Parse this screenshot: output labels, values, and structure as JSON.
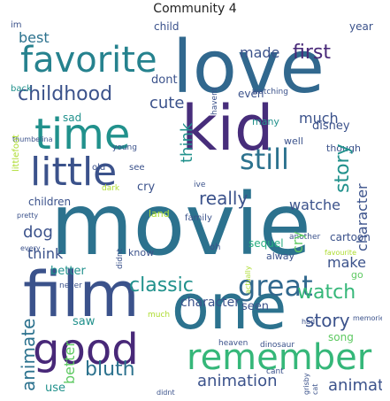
{
  "title": "Community 4",
  "palette": {
    "dark_purple": "#440154",
    "indigo": "#3b528b",
    "blue": "#2c728e",
    "teal": "#21918c",
    "green": "#28ae80",
    "light_green": "#5ec962",
    "yellow_green": "#addc30",
    "navy": "#31688e"
  },
  "words": [
    {
      "text": "movie",
      "color": "#2c728e"
    },
    {
      "text": "love",
      "color": "#31688e"
    },
    {
      "text": "kid",
      "color": "#472d7b"
    },
    {
      "text": "film",
      "color": "#3b528b"
    },
    {
      "text": "one",
      "color": "#2c728e"
    },
    {
      "text": "time",
      "color": "#21918c"
    },
    {
      "text": "little",
      "color": "#3b528b"
    },
    {
      "text": "favorite",
      "color": "#26828e"
    },
    {
      "text": "good",
      "color": "#482878"
    },
    {
      "text": "remember",
      "color": "#35b779"
    },
    {
      "text": "great",
      "color": "#31688e"
    },
    {
      "text": "still",
      "color": "#2c728e"
    },
    {
      "text": "childhood",
      "color": "#3b528b"
    },
    {
      "text": "classic",
      "color": "#21918c"
    },
    {
      "text": "watch",
      "color": "#35b779"
    },
    {
      "text": "bluth",
      "color": "#2c728e"
    },
    {
      "text": "animation",
      "color": "#3b528b"
    },
    {
      "text": "first",
      "color": "#482878"
    },
    {
      "text": "really",
      "color": "#21918c"
    },
    {
      "text": "story",
      "color": "#3b528b"
    },
    {
      "text": "animate",
      "color": "#2c728e"
    },
    {
      "text": "cute",
      "color": "#3b528b"
    },
    {
      "text": "made",
      "color": "#3b528b"
    },
    {
      "text": "best",
      "color": "#3b528b"
    },
    {
      "text": "much",
      "color": "#3b528b"
    },
    {
      "text": "watche",
      "color": "#2c728e"
    },
    {
      "text": "dog",
      "color": "#3b528b"
    },
    {
      "text": "think",
      "color": "#21918c"
    },
    {
      "text": "make",
      "color": "#3b528b"
    },
    {
      "text": "character",
      "color": "#3b528b"
    },
    {
      "text": "use",
      "color": "#3b528b"
    },
    {
      "text": "dont",
      "color": "#3b528b"
    },
    {
      "text": "seen",
      "color": "#3b528b"
    },
    {
      "text": "saw",
      "color": "#3b528b"
    },
    {
      "text": "better",
      "color": "#5ec962"
    },
    {
      "text": "even",
      "color": "#21918c"
    },
    {
      "text": "sequel",
      "color": "#3b528b"
    },
    {
      "text": "cry",
      "color": "#5ec962"
    },
    {
      "text": "disney",
      "color": "#3b528b"
    },
    {
      "text": "children",
      "color": "#21918c"
    },
    {
      "text": "cartoon",
      "color": "#21918c"
    },
    {
      "text": "sad",
      "color": "#3b528b"
    },
    {
      "text": "song",
      "color": "#28ae80"
    },
    {
      "text": "well",
      "color": "#3b528b"
    },
    {
      "text": "year",
      "color": "#3b528b"
    },
    {
      "text": "child",
      "color": "#3b528b"
    },
    {
      "text": "back",
      "color": "#3b528b"
    },
    {
      "text": "go",
      "color": "#21918c"
    },
    {
      "text": "know",
      "color": "#5ec962"
    },
    {
      "text": "land",
      "color": "#3b528b"
    },
    {
      "text": "many",
      "color": "#3b528b"
    },
    {
      "text": "though",
      "color": "#3b528b"
    },
    {
      "text": "alway",
      "color": "#21918c"
    },
    {
      "text": "family",
      "color": "#5ec962"
    },
    {
      "text": "oh",
      "color": "#3b528b"
    },
    {
      "text": "old",
      "color": "#addc30"
    },
    {
      "text": "see",
      "color": "#21918c"
    },
    {
      "text": "im",
      "color": "#3b528b"
    },
    {
      "text": "voice",
      "color": "#3b528b"
    },
    {
      "text": "dark",
      "color": "#3b528b"
    },
    {
      "text": "ive",
      "color": "#3b528b"
    },
    {
      "text": "day",
      "color": "#3b528b"
    },
    {
      "text": "cant",
      "color": "#3b528b"
    },
    {
      "text": "never",
      "color": "#3b528b"
    },
    {
      "text": "much",
      "color": "#3b528b"
    },
    {
      "text": "heaven",
      "color": "#addc30"
    },
    {
      "text": "dinosaur",
      "color": "#3b528b"
    },
    {
      "text": "watching",
      "color": "#addc30"
    },
    {
      "text": "littlefoot",
      "color": "#3b528b"
    },
    {
      "text": "young",
      "color": "#3b528b"
    },
    {
      "text": "pretty",
      "color": "#addc30"
    },
    {
      "text": "havent",
      "color": "#3b528b"
    },
    {
      "text": "didnt",
      "color": "#3b528b"
    },
    {
      "text": "another",
      "color": "#3b528b"
    },
    {
      "text": "every",
      "color": "#3b528b"
    },
    {
      "text": "thumbelina",
      "color": "#3b528b"
    },
    {
      "text": "favourite",
      "color": "#3b528b"
    },
    {
      "text": "actually",
      "color": "#3b528b"
    },
    {
      "text": "memorie",
      "color": "#3b528b"
    },
    {
      "text": "grisby",
      "color": "#3b528b"
    },
    {
      "text": "cat",
      "color": "#3b528b"
    },
    {
      "text": "had",
      "color": "#3b528b"
    },
    {
      "text": "growing",
      "color": "#addc30"
    },
    {
      "text": "probably",
      "color": "#addc30"
    },
    {
      "text": "younger",
      "color": "#3b528b"
    },
    {
      "text": "book",
      "color": "#3b528b"
    },
    {
      "text": "long",
      "color": "#3b528b"
    },
    {
      "text": "hate",
      "color": "#3b528b"
    }
  ]
}
